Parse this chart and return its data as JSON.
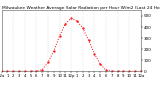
{
  "title": "Milwaukee Weather Average Solar Radiation per Hour W/m2 (Last 24 Hours)",
  "x_labels": [
    "12a",
    "1",
    "2",
    "3",
    "4",
    "5",
    "6",
    "7",
    "8",
    "9",
    "10",
    "11",
    "12p",
    "1",
    "2",
    "3",
    "4",
    "5",
    "6",
    "7",
    "8",
    "9",
    "10",
    "11",
    "12a"
  ],
  "hours": [
    0,
    1,
    2,
    3,
    4,
    5,
    6,
    7,
    8,
    9,
    10,
    11,
    12,
    13,
    14,
    15,
    16,
    17,
    18,
    19,
    20,
    21,
    22,
    23,
    24
  ],
  "values": [
    0,
    0,
    0,
    0,
    0,
    0,
    2,
    15,
    80,
    185,
    320,
    430,
    480,
    455,
    390,
    280,
    160,
    65,
    10,
    2,
    0,
    0,
    0,
    0,
    0
  ],
  "line_color": "#ff0000",
  "bg_color": "#ffffff",
  "grid_color": "#bbbbbb",
  "ylim": [
    0,
    550
  ],
  "yticks": [
    0,
    100,
    200,
    300,
    400,
    500
  ],
  "ylabel_fontsize": 3.0,
  "xlabel_fontsize": 2.8,
  "title_fontsize": 3.2
}
